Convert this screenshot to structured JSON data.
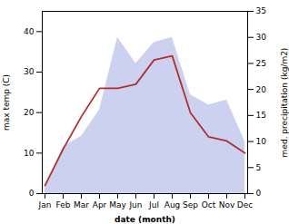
{
  "chart_data": {
    "type": "line",
    "categories": [
      "Jan",
      "Feb",
      "Mar",
      "Apr",
      "May",
      "Jun",
      "Jul",
      "Aug",
      "Sep",
      "Oct",
      "Nov",
      "Dec"
    ],
    "series": [
      {
        "type": "area",
        "axis": "y2",
        "color": "#b0b8e8",
        "values": [
          1,
          9,
          11,
          16,
          30,
          25,
          29,
          30,
          19,
          17,
          18,
          10
        ]
      },
      {
        "type": "line",
        "color": "#b03030",
        "values": [
          2,
          11,
          19,
          26,
          26,
          27,
          33,
          34,
          20,
          14,
          13,
          10
        ]
      }
    ],
    "xlabel": "date (month)",
    "ylabel": "max temp (C)",
    "y2label": "med. precipitation (kg/m2)",
    "ylim": [
      0,
      45
    ],
    "yticks": [
      0,
      10,
      20,
      30,
      40
    ],
    "y2lim": [
      0,
      35
    ],
    "y2ticks": [
      0,
      5,
      10,
      15,
      20,
      25,
      30,
      35
    ]
  }
}
